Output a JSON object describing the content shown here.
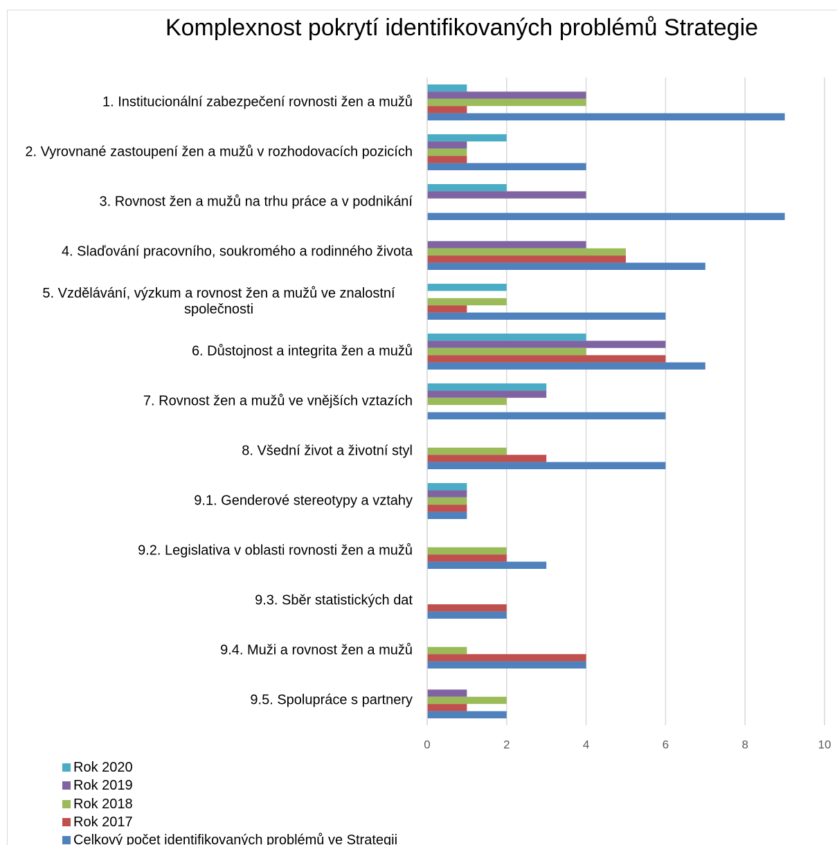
{
  "chart_data": {
    "type": "bar",
    "orientation": "horizontal",
    "title": "Komplexnost pokrytí identifikovaných problémů Strategie",
    "categories": [
      "1. Institucionální zabezpečení rovnosti žen a mužů",
      "2. Vyrovnané zastoupení žen a mužů v rozhodovacích pozicích",
      "3. Rovnost žen a mužů na trhu práce a v podnikání",
      "4. Slaďování pracovního, soukromého a rodinného života",
      "5. Vzdělávání, výzkum a rovnost žen a mužů ve znalostní společnosti",
      "6. Důstojnost a integrita žen a mužů",
      "7. Rovnost žen a mužů ve vnějších vztazích",
      "8. Všední život a životní styl",
      "9.1. Genderové stereotypy a vztahy",
      "9.2. Legislativa v oblasti rovnosti žen a mužů",
      "9.3. Sběr statistických dat",
      "9.4. Muži a rovnost žen a mužů",
      "9.5. Spolupráce s partnery"
    ],
    "series": [
      {
        "name": "Rok 2020",
        "color": "#4bacc6",
        "values": [
          1,
          2,
          2,
          0,
          2,
          4,
          3,
          0,
          1,
          0,
          0,
          0,
          0
        ]
      },
      {
        "name": "Rok 2019",
        "color": "#8064a2",
        "values": [
          4,
          1,
          4,
          4,
          0,
          6,
          3,
          0,
          1,
          0,
          0,
          0,
          1
        ]
      },
      {
        "name": "Rok 2018",
        "color": "#9bbb59",
        "values": [
          4,
          1,
          0,
          5,
          2,
          4,
          2,
          2,
          1,
          2,
          0,
          1,
          2
        ]
      },
      {
        "name": "Rok 2017",
        "color": "#c0504d",
        "values": [
          1,
          1,
          0,
          5,
          1,
          6,
          0,
          3,
          1,
          2,
          2,
          4,
          1
        ]
      },
      {
        "name": "Celkový počet identifikovaných problémů ve Strategii",
        "color": "#4f81bd",
        "values": [
          9,
          4,
          9,
          7,
          6,
          7,
          6,
          6,
          1,
          3,
          2,
          4,
          2
        ]
      }
    ],
    "xlim": [
      0,
      10
    ],
    "xticks": [
      0,
      2,
      4,
      6,
      8,
      10
    ],
    "grid": true
  }
}
